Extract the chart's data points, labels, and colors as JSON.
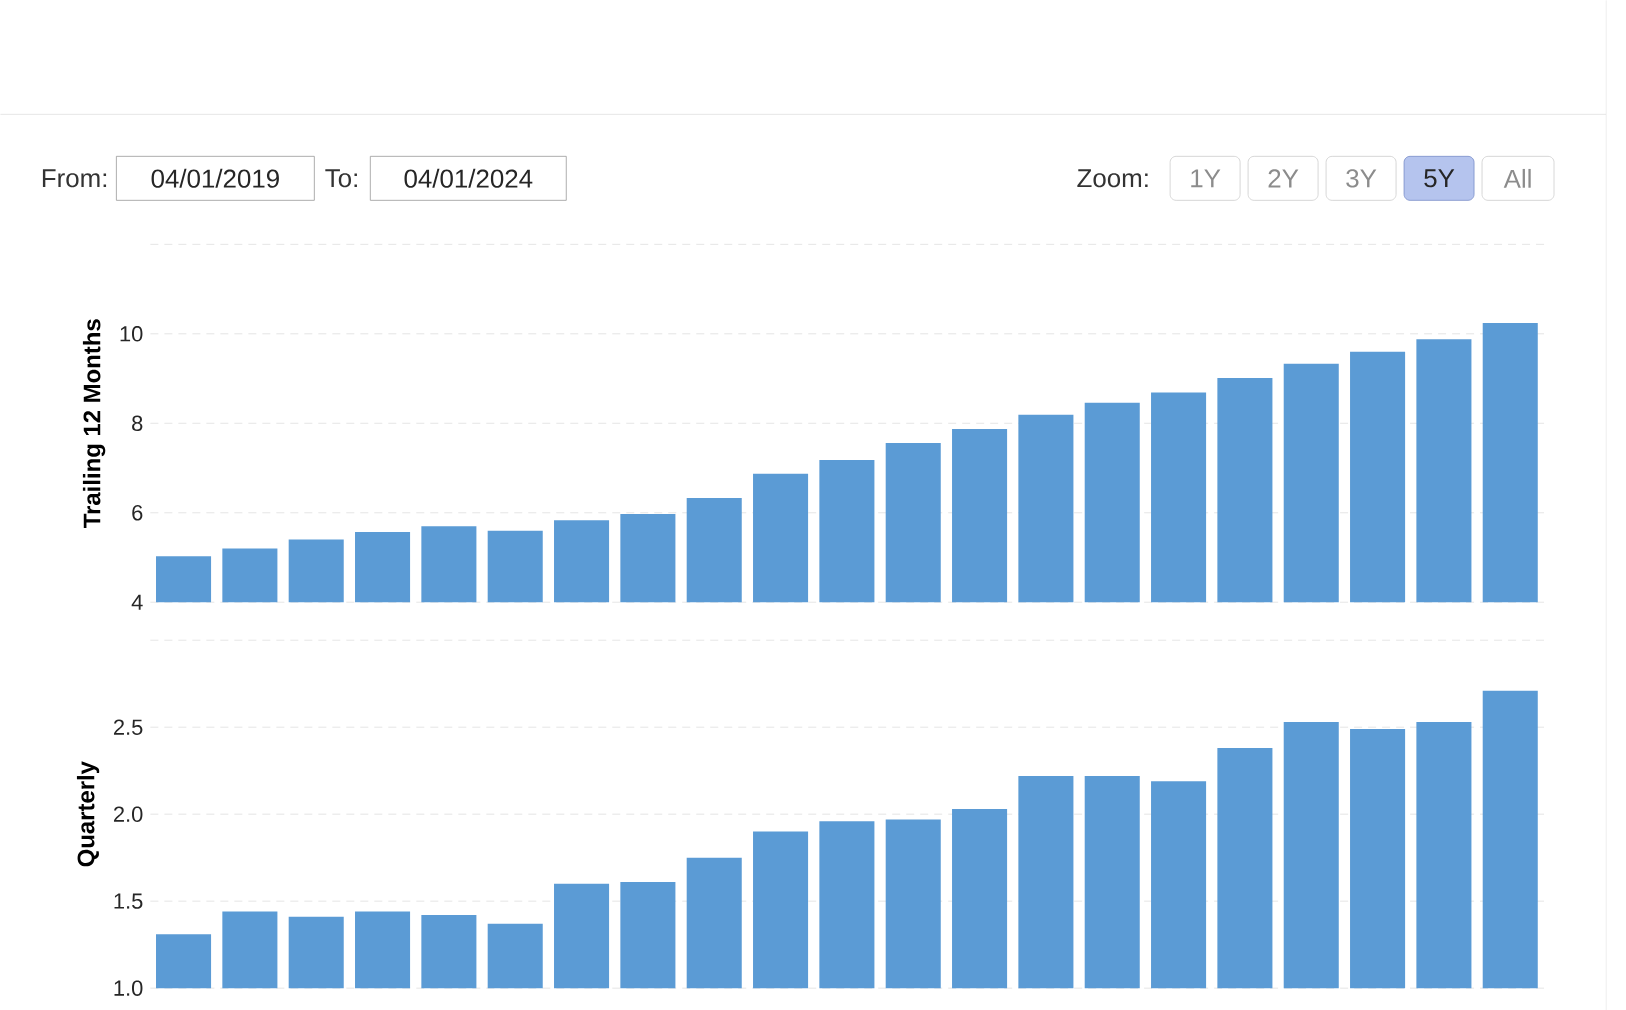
{
  "chart_data": [
    {
      "type": "bar",
      "ylabel": "Trailing 12 Months",
      "color": "#5b9bd5",
      "grid": "y",
      "categories": [
        null,
        null,
        null,
        null,
        null,
        null,
        null,
        null,
        null,
        null,
        null,
        null,
        null,
        null,
        null,
        null,
        null,
        null,
        null,
        null,
        null
      ],
      "values": [
        5.03,
        5.2,
        5.4,
        5.57,
        5.7,
        5.6,
        5.83,
        5.97,
        6.33,
        6.87,
        7.18,
        7.56,
        7.87,
        8.19,
        8.46,
        8.69,
        9.01,
        9.33,
        9.6,
        9.88,
        10.24
      ],
      "ylim": [
        4,
        12
      ],
      "yticks": [
        4,
        6,
        8,
        10,
        {
          "value": 12,
          "label": null
        }
      ],
      "annotations": [
        "From:",
        "04/01/2019",
        "To:",
        "04/01/2024",
        "Zoom:",
        "1Y",
        "2Y",
        "3Y",
        "5Y",
        "All"
      ]
    },
    {
      "type": "bar",
      "ylabel": "Quarterly",
      "color": "#5b9bd5",
      "grid": "y",
      "categories": [
        null,
        null,
        null,
        null,
        null,
        null,
        null,
        null,
        null,
        null,
        null,
        null,
        null,
        null,
        null,
        null,
        null,
        null,
        null,
        null,
        null
      ],
      "values": [
        1.31,
        1.44,
        1.41,
        1.44,
        1.42,
        1.37,
        1.6,
        1.61,
        1.75,
        1.9,
        1.96,
        1.97,
        2.03,
        2.22,
        2.22,
        2.19,
        2.38,
        2.53,
        2.49,
        2.53,
        2.71
      ],
      "ylim": [
        1,
        3
      ],
      "yticks": [
        {
          "value": 1,
          "label": "1.0"
        },
        {
          "value": 1.5,
          "label": "1.5"
        },
        {
          "value": 2,
          "label": "2.0"
        },
        {
          "value": 2.5,
          "label": "2.5"
        },
        {
          "value": 3,
          "label": null
        }
      ]
    }
  ]
}
